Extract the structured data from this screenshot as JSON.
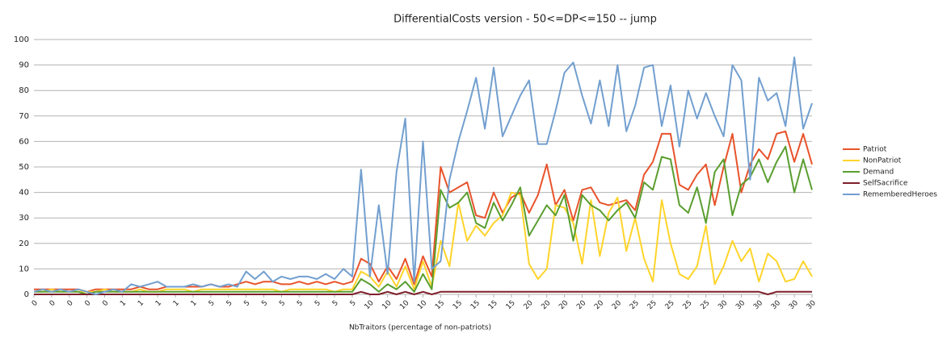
{
  "chart_data": {
    "type": "line",
    "title": "DifferentialCosts version - 50<=DP<=150 -- jump",
    "x_label": "NbTraitors (percentage of non-patriots)",
    "categories": [
      "0",
      null,
      "0",
      null,
      "0",
      null,
      "0",
      null,
      "0",
      null,
      "1",
      null,
      "1",
      null,
      "1",
      null,
      "1",
      null,
      "1",
      null,
      "5",
      null,
      "5",
      null,
      "5",
      null,
      "5",
      null,
      "5",
      null,
      "5",
      null,
      "5",
      null,
      "5",
      null,
      "5",
      null,
      "10",
      null,
      "10",
      null,
      "10",
      null,
      "10",
      null,
      "15",
      null,
      "15",
      null,
      "15",
      null,
      "15",
      null,
      "15",
      null,
      "20",
      null,
      "20",
      null,
      "20",
      null,
      "20",
      null,
      "20",
      null,
      "20",
      null,
      "25",
      null,
      "25",
      null,
      "25",
      null,
      "25",
      null,
      "25",
      null,
      "30",
      null,
      "30",
      null,
      "30",
      null,
      "30",
      null,
      "30",
      null,
      "30"
    ],
    "ylim": [
      0,
      100
    ],
    "yticks": [
      0,
      10,
      20,
      30,
      40,
      50,
      60,
      70,
      80,
      90,
      100
    ],
    "grid": true,
    "legend": "right",
    "series": [
      {
        "name": "Patriot",
        "color": "#e8532b",
        "values": [
          2,
          2,
          2,
          2,
          2,
          2,
          1,
          2,
          2,
          2,
          2,
          2,
          3,
          2,
          2,
          3,
          3,
          3,
          3,
          3,
          4,
          3,
          3,
          4,
          5,
          4,
          5,
          5,
          4,
          4,
          5,
          4,
          5,
          4,
          5,
          4,
          5,
          14,
          12,
          5,
          11,
          6,
          14,
          4,
          15,
          7,
          50,
          40,
          42,
          44,
          31,
          30,
          40,
          32,
          38,
          40,
          32,
          39,
          51,
          35,
          41,
          29,
          41,
          42,
          36,
          35,
          36,
          37,
          33,
          47,
          52,
          63,
          63,
          43,
          41,
          47,
          51,
          35,
          50,
          63,
          40,
          51,
          57,
          53,
          63,
          64,
          52,
          63,
          51
        ]
      },
      {
        "name": "NonPatriot",
        "color": "#ffd42a",
        "values": [
          1,
          1,
          2,
          1,
          1,
          1,
          1,
          1,
          2,
          1,
          1,
          1,
          2,
          1,
          1,
          2,
          2,
          2,
          1,
          2,
          2,
          2,
          2,
          2,
          2,
          2,
          2,
          2,
          1,
          2,
          2,
          2,
          2,
          2,
          1,
          2,
          2,
          9,
          7,
          3,
          9,
          3,
          11,
          2,
          13,
          3,
          21,
          11,
          36,
          21,
          27,
          23,
          28,
          31,
          40,
          39,
          12,
          6,
          10,
          35,
          34,
          28,
          12,
          37,
          15,
          32,
          38,
          17,
          30,
          14,
          5,
          37,
          20,
          8,
          6,
          11,
          27,
          4,
          11,
          21,
          13,
          18,
          5,
          16,
          13,
          5,
          6,
          13,
          7
        ]
      },
      {
        "name": "Demand",
        "color": "#5a9e2f",
        "values": [
          1,
          1,
          1,
          1,
          1,
          1,
          0,
          1,
          1,
          1,
          1,
          1,
          1,
          1,
          1,
          1,
          1,
          1,
          1,
          1,
          1,
          1,
          1,
          1,
          1,
          1,
          1,
          1,
          1,
          1,
          1,
          1,
          1,
          1,
          1,
          1,
          1,
          6,
          4,
          1,
          4,
          2,
          5,
          1,
          8,
          2,
          41,
          34,
          36,
          40,
          28,
          26,
          36,
          29,
          35,
          42,
          23,
          29,
          35,
          31,
          39,
          21,
          39,
          35,
          33,
          29,
          33,
          36,
          30,
          44,
          41,
          54,
          53,
          35,
          32,
          42,
          28,
          48,
          53,
          31,
          43,
          46,
          53,
          44,
          52,
          58,
          40,
          53,
          41
        ]
      },
      {
        "name": "SelfSacrifice",
        "color": "#7e1f2a",
        "values": [
          0,
          0,
          0,
          0,
          0,
          0,
          0,
          0,
          0,
          0,
          0,
          0,
          0,
          0,
          0,
          0,
          0,
          0,
          0,
          0,
          0,
          0,
          0,
          0,
          0,
          0,
          0,
          0,
          0,
          0,
          0,
          0,
          0,
          0,
          0,
          0,
          0,
          1,
          0,
          0,
          1,
          0,
          1,
          0,
          1,
          0,
          1,
          1,
          1,
          1,
          1,
          1,
          1,
          1,
          1,
          1,
          1,
          1,
          1,
          1,
          1,
          1,
          1,
          1,
          1,
          1,
          1,
          1,
          1,
          1,
          1,
          1,
          1,
          1,
          1,
          1,
          1,
          1,
          1,
          1,
          1,
          1,
          1,
          0,
          1,
          1,
          1,
          1,
          1
        ]
      },
      {
        "name": "RememberedHeroes",
        "color": "#729fcf",
        "values": [
          1,
          2,
          1,
          2,
          1,
          2,
          1,
          0,
          1,
          2,
          1,
          4,
          3,
          4,
          5,
          3,
          3,
          3,
          4,
          3,
          4,
          3,
          4,
          3,
          9,
          6,
          9,
          5,
          7,
          6,
          7,
          7,
          6,
          8,
          6,
          10,
          7,
          49,
          7,
          35,
          8,
          48,
          69,
          5,
          60,
          10,
          13,
          45,
          60,
          72,
          85,
          65,
          89,
          62,
          70,
          78,
          84,
          59,
          59,
          72,
          87,
          91,
          78,
          67,
          84,
          66,
          90,
          64,
          74,
          89,
          90,
          66,
          82,
          58,
          80,
          69,
          79,
          70,
          62,
          90,
          84,
          45,
          85,
          76,
          79,
          66,
          93,
          65,
          75
        ]
      }
    ]
  }
}
